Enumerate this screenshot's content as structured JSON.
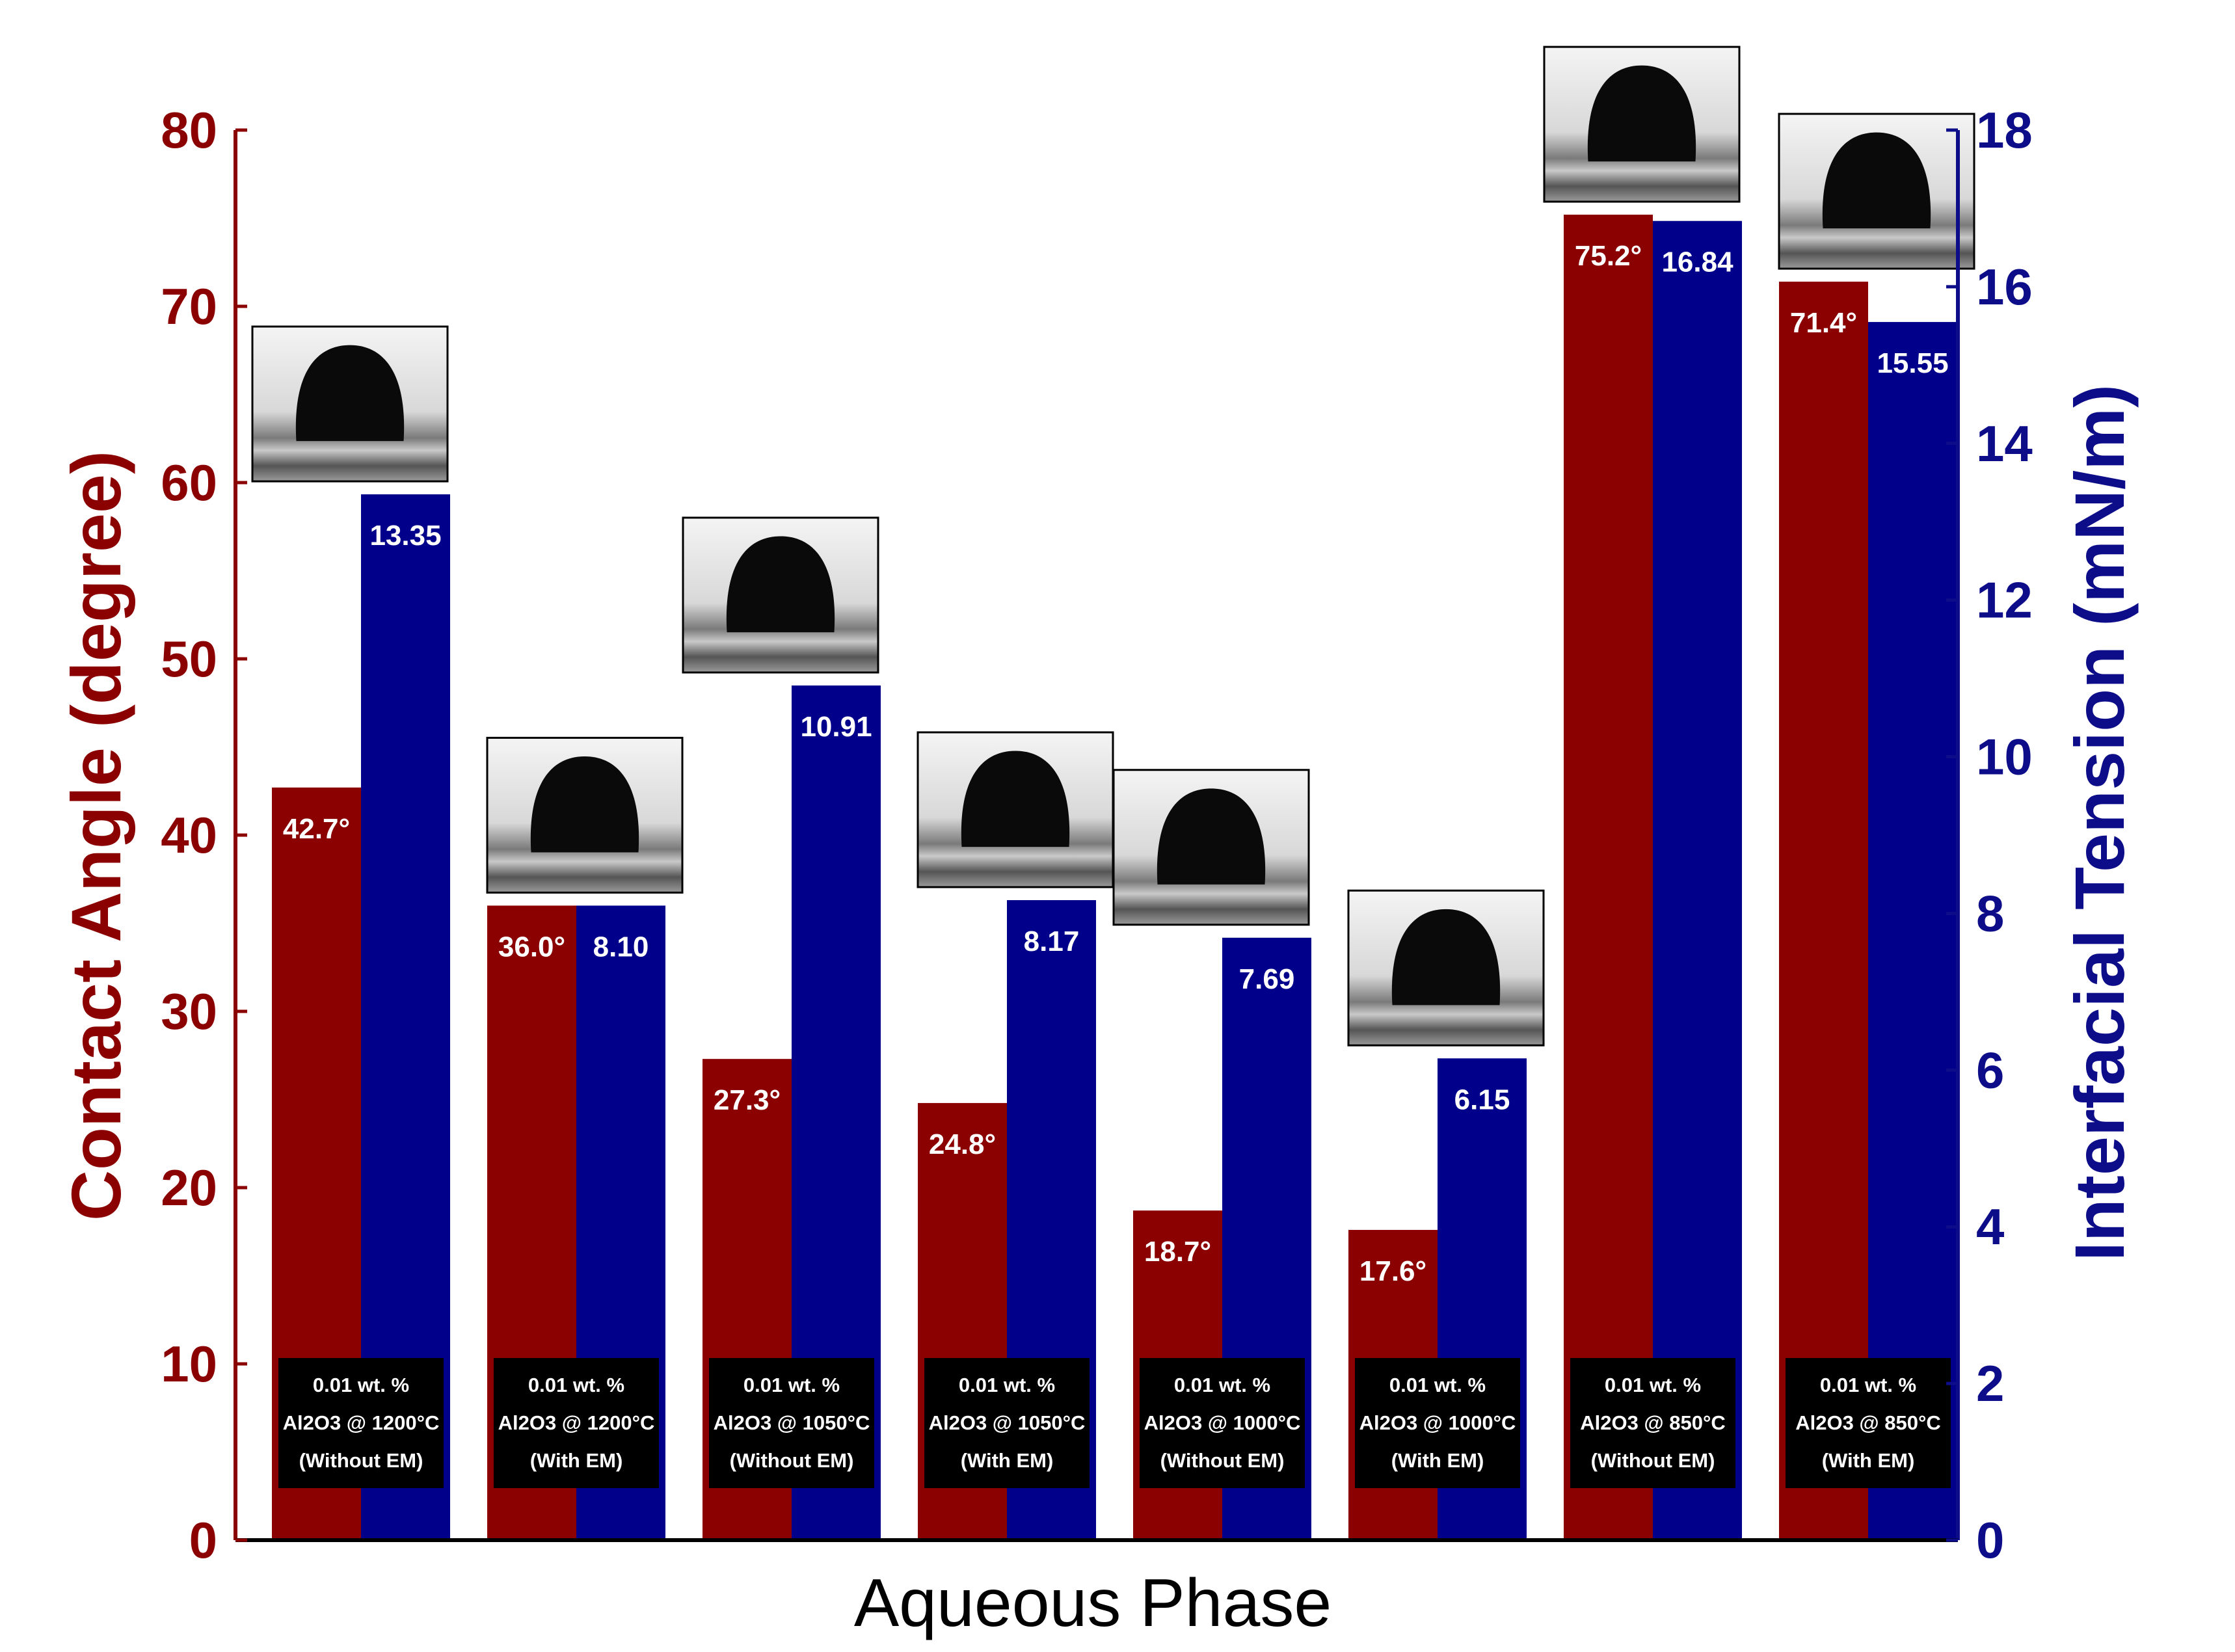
{
  "chart_data": {
    "type": "bar",
    "xlabel": "Aqueous Phase",
    "ylabel_left": "Contact Angle (degree)",
    "ylabel_right": "Interfacial Tension (mN/m)",
    "ylim_left": [
      0,
      80
    ],
    "ylim_right": [
      0,
      18
    ],
    "yticks_left": [
      "0",
      "10",
      "20",
      "30",
      "40",
      "50",
      "60",
      "70",
      "80"
    ],
    "yticks_right": [
      "0",
      "2",
      "4",
      "6",
      "8",
      "10",
      "12",
      "14",
      "16",
      "18"
    ],
    "groups": [
      {
        "line1": "0.01 wt. %",
        "line2": "Al2O3 @ 1200°C",
        "line3": "(Without EM)",
        "contact_angle": 42.7,
        "contact_label": "42.7°",
        "ift": 13.35,
        "ift_label": "13.35"
      },
      {
        "line1": "0.01 wt. %",
        "line2": "Al2O3 @ 1200°C",
        "line3": "(With EM)",
        "contact_angle": 36.0,
        "contact_label": "36.0°",
        "ift": 8.1,
        "ift_label": "8.10"
      },
      {
        "line1": "0.01 wt. %",
        "line2": "Al2O3 @ 1050°C",
        "line3": "(Without EM)",
        "contact_angle": 27.3,
        "contact_label": "27.3°",
        "ift": 10.91,
        "ift_label": "10.91"
      },
      {
        "line1": "0.01 wt. %",
        "line2": "Al2O3 @ 1050°C",
        "line3": "(With EM)",
        "contact_angle": 24.8,
        "contact_label": "24.8°",
        "ift": 8.17,
        "ift_label": "8.17"
      },
      {
        "line1": "0.01 wt. %",
        "line2": "Al2O3 @ 1000°C",
        "line3": "(Without EM)",
        "contact_angle": 18.7,
        "contact_label": "18.7°",
        "ift": 7.69,
        "ift_label": "7.69"
      },
      {
        "line1": "0.01 wt. %",
        "line2": "Al2O3 @ 1000°C",
        "line3": "(With EM)",
        "contact_angle": 17.6,
        "contact_label": "17.6°",
        "ift": 6.15,
        "ift_label": "6.15"
      },
      {
        "line1": "0.01 wt. %",
        "line2": "Al2O3 @ 850°C",
        "line3": "(Without EM)",
        "contact_angle": 75.2,
        "contact_label": "75.2°",
        "ift": 16.84,
        "ift_label": "16.84"
      },
      {
        "line1": "0.01 wt. %",
        "line2": "Al2O3 @ 850°C",
        "line3": "(With EM)",
        "contact_angle": 71.4,
        "contact_label": "71.4°",
        "ift": 15.55,
        "ift_label": "15.55"
      }
    ],
    "colors": {
      "contact_angle": "#8b0000",
      "ift": "#00008b",
      "left_axis": "#8b0000",
      "right_axis": "#0d0d8a"
    }
  }
}
